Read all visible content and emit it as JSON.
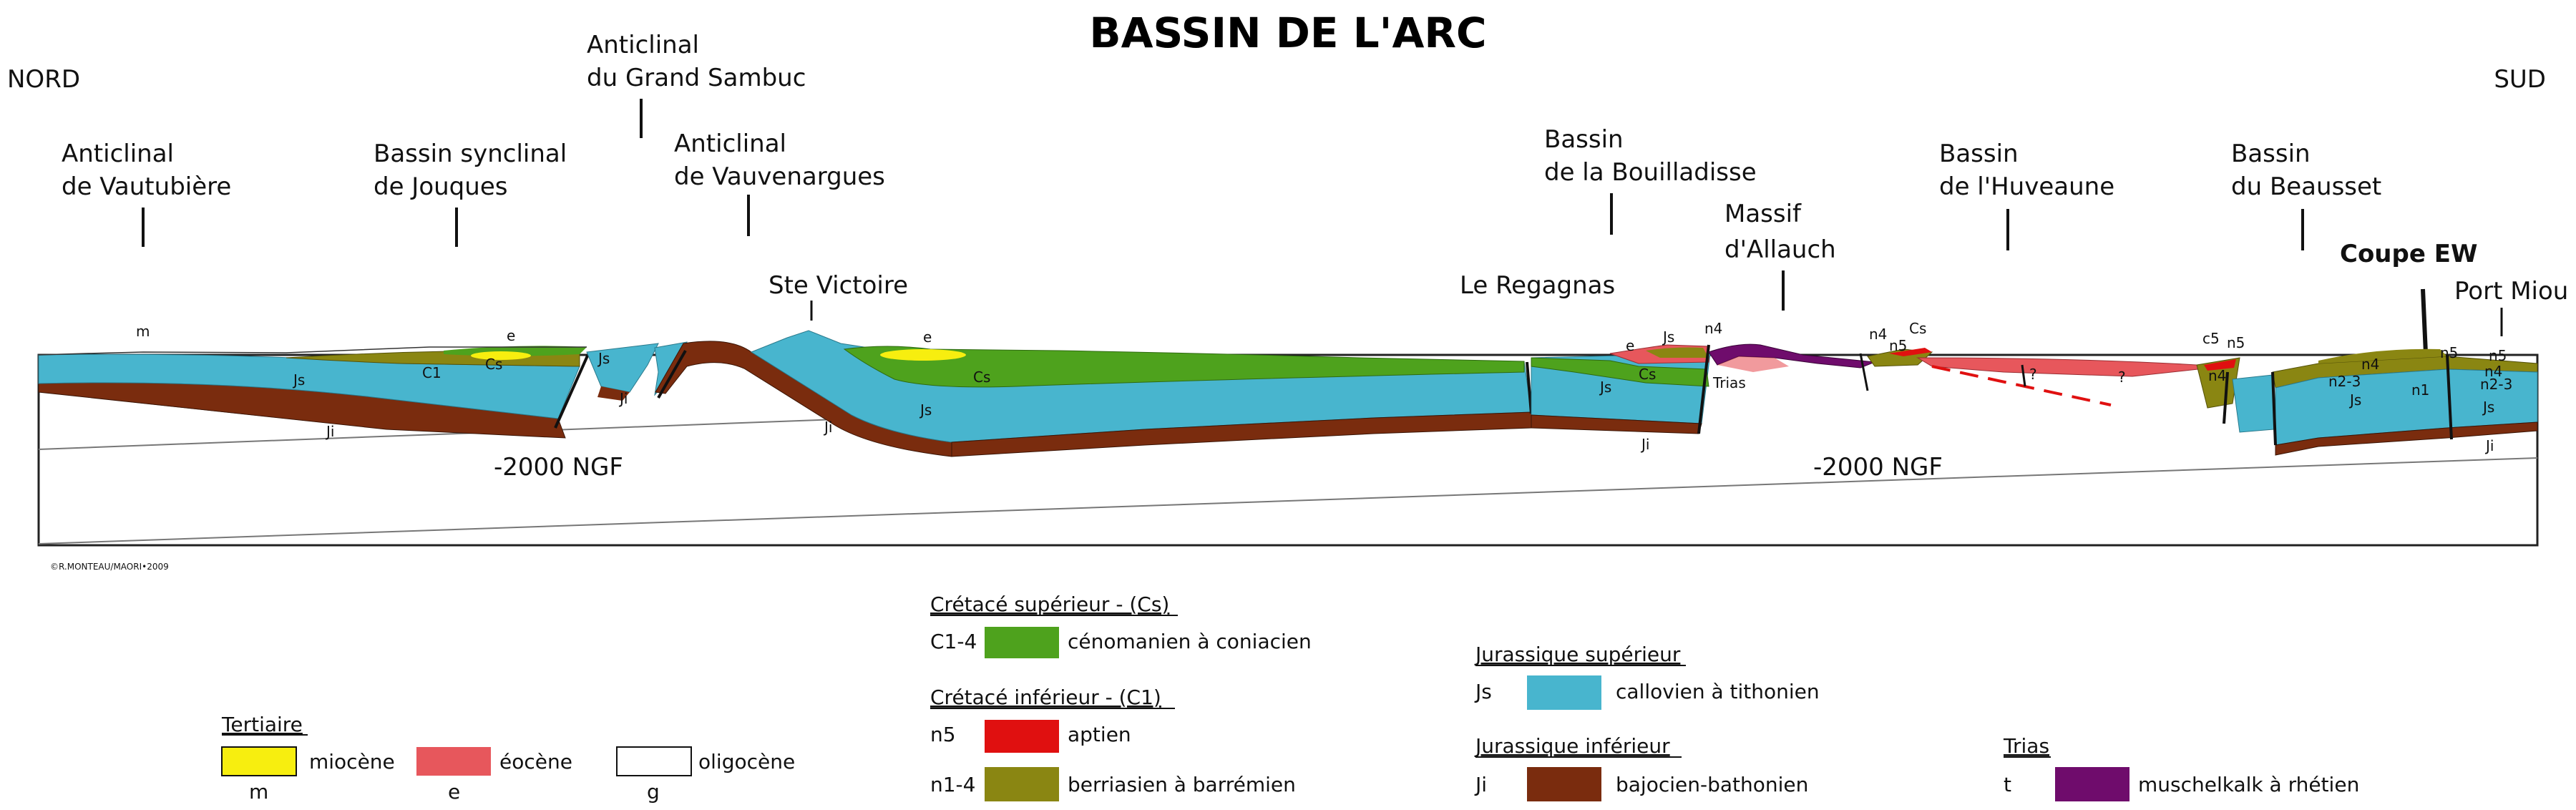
{
  "title": "BASSIN DE L'ARC",
  "orientation": {
    "left": "NORD",
    "right": "SUD"
  },
  "structures": [
    {
      "line1": "Anticlinal",
      "line2": "de Vautubière"
    },
    {
      "line1": "Bassin synclinal",
      "line2": "de Jouques"
    },
    {
      "line1": "Anticlinal",
      "line2": "du Grand Sambuc"
    },
    {
      "line1": "Anticlinal",
      "line2": "de Vauvenargues"
    },
    {
      "line1": "Bassin",
      "line2": "de la Bouilladisse"
    },
    {
      "line1": "Massif",
      "line2": "d'Allauch"
    },
    {
      "line1": "Bassin",
      "line2": "de l'Huveaune"
    },
    {
      "line1": "Bassin",
      "line2": "du Beausset"
    }
  ],
  "places": {
    "ste_victoire": "Ste Victoire",
    "regagnas": "Le Regagnas",
    "coupe_ew": "Coupe EW",
    "port_miou": "Port Miou"
  },
  "depth_labels": [
    "-2000 NGF",
    "-2000 NGF"
  ],
  "section_labels": {
    "m": "m",
    "Js": "Js",
    "Ji": "Ji",
    "C1": "C1",
    "Cs": "Cs",
    "e": "e",
    "n4": "n4",
    "n5": "n5",
    "Trias": "Trias",
    "c5": "c5",
    "n1": "n1",
    "n2_3": "n2-3",
    "q": "?"
  },
  "credit": "©R.MONTEAU/MAORI•2009",
  "legend": {
    "tertiaire": {
      "heading": "Tertiaire",
      "items": [
        {
          "text": "miocène",
          "code": "m",
          "color": "#f7ee0f"
        },
        {
          "text": "éocène",
          "code": "e",
          "color": "#e7575c"
        },
        {
          "text": "oligocène",
          "code": "g",
          "color": "#ffffff"
        }
      ]
    },
    "cretace_sup": {
      "heading": "Crétacé supérieur - (Cs)",
      "items": [
        {
          "code": "C1-4",
          "text": "cénomanien à coniacien",
          "color": "#4ea21d"
        }
      ]
    },
    "cretace_inf": {
      "heading": "Crétacé inférieur - (C1)",
      "items": [
        {
          "code": "n5",
          "text": "aptien",
          "color": "#e01010"
        },
        {
          "code": "n1-4",
          "text": "berriasien à barrémien",
          "color": "#8a8612"
        }
      ]
    },
    "jurassique_sup": {
      "heading": "Jurassique supérieur",
      "items": [
        {
          "code": "Js",
          "text": "callovien à tithonien",
          "color": "#48b5ce"
        }
      ]
    },
    "jurassique_inf": {
      "heading": "Jurassique inférieur",
      "items": [
        {
          "code": "Ji",
          "text": "bajocien-bathonien",
          "color": "#7a2c0e"
        }
      ]
    },
    "trias": {
      "heading": "Trias",
      "items": [
        {
          "code": "t",
          "text": "muschelkalk à rhétien",
          "color": "#6f0c6c"
        }
      ]
    }
  }
}
